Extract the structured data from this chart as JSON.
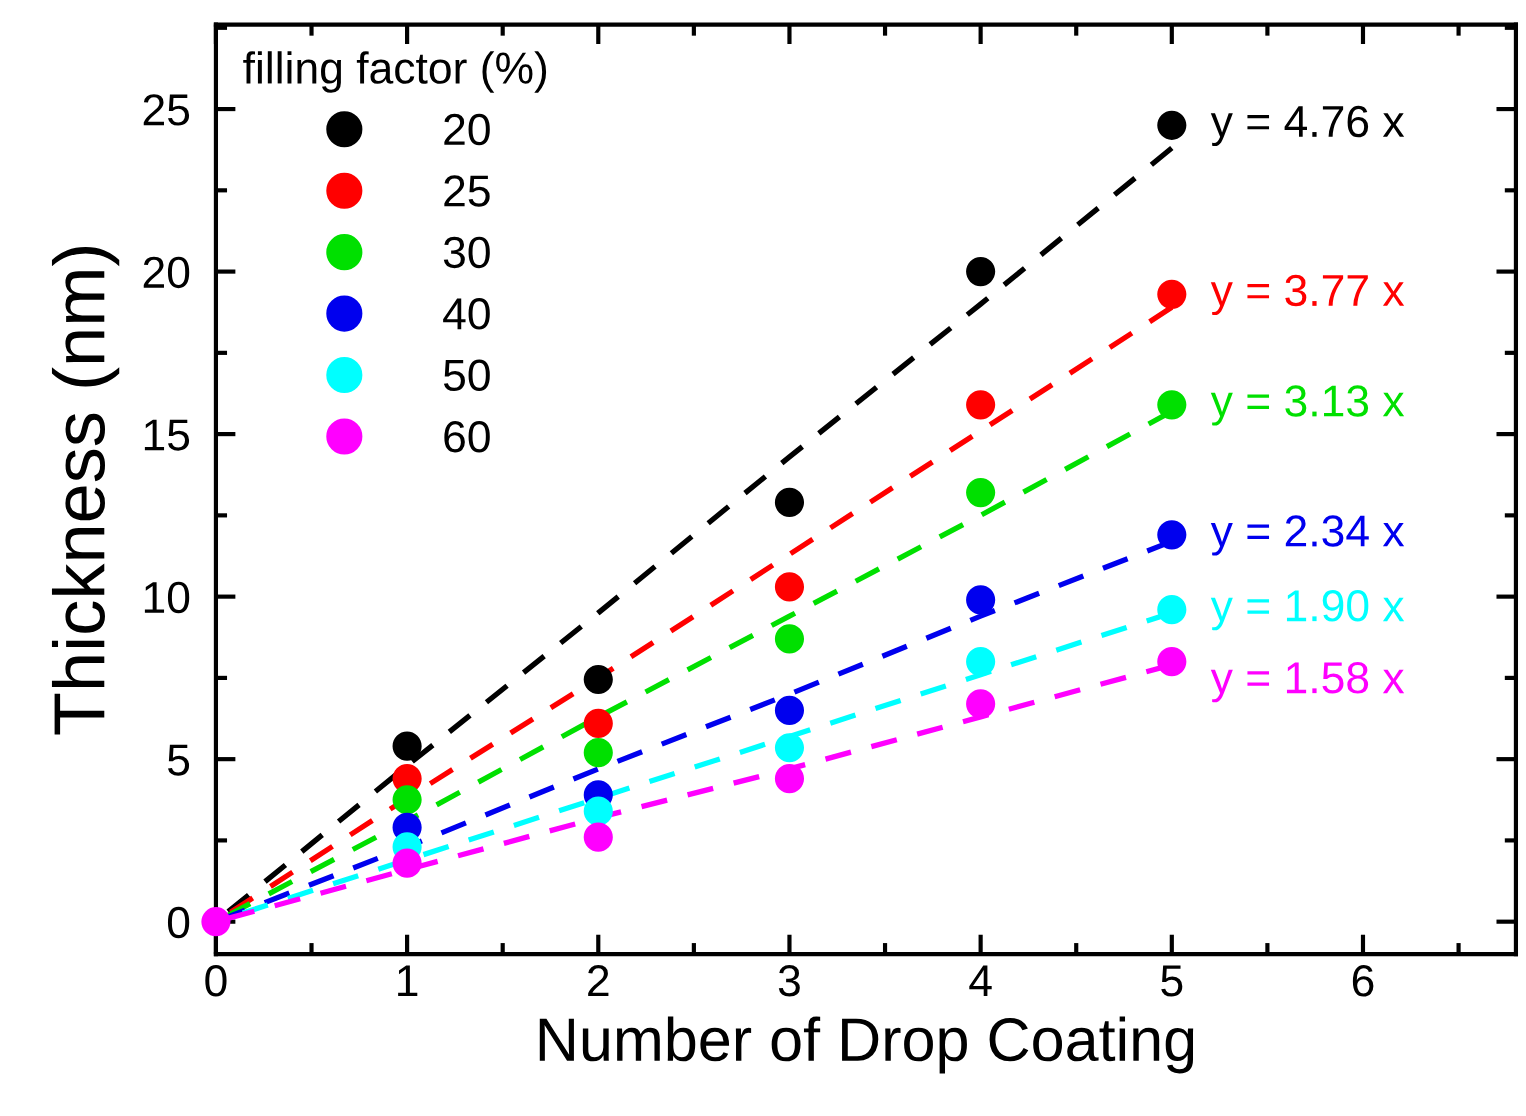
{
  "chart_data": {
    "type": "scatter",
    "xlabel": "Number of Drop Coating",
    "ylabel": "Thickness (nm)",
    "legend_title": "filling factor (%)",
    "legend": "top left",
    "marker": "circle",
    "grid": false,
    "x": [
      0,
      1,
      2,
      3,
      4,
      5
    ],
    "xlim": [
      0,
      6.8
    ],
    "xticks": [
      0,
      1,
      2,
      3,
      4,
      5,
      6
    ],
    "ylim": [
      -1,
      27.6
    ],
    "yticks": [
      0,
      5,
      10,
      15,
      20,
      25
    ],
    "series": [
      {
        "name": "20",
        "color": "#000000",
        "values": [
          null,
          5.4,
          7.45,
          12.9,
          20.0,
          24.5
        ]
      },
      {
        "name": "25",
        "color": "#ff0000",
        "values": [
          null,
          4.4,
          6.1,
          10.3,
          15.9,
          19.3
        ]
      },
      {
        "name": "30",
        "color": "#00e000",
        "values": [
          null,
          3.75,
          5.2,
          8.7,
          13.2,
          15.9
        ]
      },
      {
        "name": "40",
        "color": "#0000ee",
        "values": [
          null,
          2.9,
          3.9,
          6.5,
          9.9,
          11.9
        ]
      },
      {
        "name": "50",
        "color": "#00ffff",
        "values": [
          null,
          2.3,
          3.4,
          5.35,
          8.0,
          9.6
        ]
      },
      {
        "name": "60",
        "color": "#ff00ff",
        "values": [
          0,
          1.8,
          2.6,
          4.4,
          6.7,
          8.0
        ]
      },
      {
        "type": "line",
        "marker": "none",
        "line_style": "dashed",
        "color": "#000000",
        "values": [
          0,
          4.8,
          9.5,
          14.3,
          19.0,
          23.8
        ]
      },
      {
        "type": "line",
        "marker": "none",
        "line_style": "dashed",
        "color": "#ff0000",
        "values": [
          0,
          3.8,
          7.5,
          11.3,
          15.1,
          18.9
        ]
      },
      {
        "type": "line",
        "marker": "none",
        "line_style": "dashed",
        "color": "#00e000",
        "values": [
          0,
          3.1,
          6.3,
          9.4,
          12.5,
          15.7
        ]
      },
      {
        "type": "line",
        "marker": "none",
        "line_style": "dashed",
        "color": "#0000ee",
        "values": [
          0,
          2.3,
          4.7,
          7.0,
          9.4,
          11.7
        ]
      },
      {
        "type": "line",
        "marker": "none",
        "line_style": "dashed",
        "color": "#00ffff",
        "values": [
          0,
          1.9,
          3.8,
          5.7,
          7.6,
          9.5
        ]
      },
      {
        "type": "line",
        "marker": "none",
        "line_style": "dashed",
        "color": "#ff00ff",
        "values": [
          0,
          1.6,
          3.2,
          4.7,
          6.3,
          7.9
        ]
      }
    ],
    "annotations": [
      "y = 4.76 x",
      "y = 3.77 x",
      "y = 3.13 x",
      "y = 2.34 x",
      "y = 1.90 x",
      "y = 1.58 x"
    ]
  }
}
